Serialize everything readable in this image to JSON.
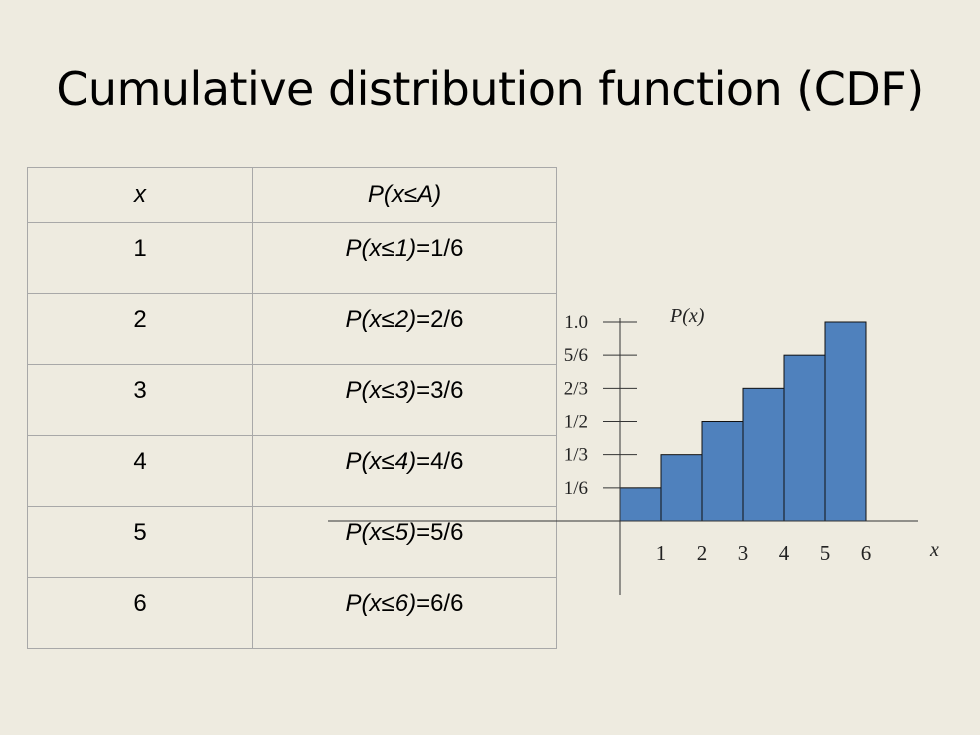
{
  "slide": {
    "title": "Cumulative distribution function (CDF)"
  },
  "table": {
    "headers": [
      "x",
      "P(x≤A)"
    ],
    "rows": [
      {
        "x": "1",
        "expr": "P(x≤1)",
        "val": "=1/6"
      },
      {
        "x": "2",
        "expr": "P(x≤2)",
        "val": "=2/6"
      },
      {
        "x": "3",
        "expr": "P(x≤3)",
        "val": "=3/6"
      },
      {
        "x": "4",
        "expr": "P(x≤4)",
        "val": "=4/6"
      },
      {
        "x": "5",
        "expr": "P(x≤5)",
        "val": "=5/6"
      },
      {
        "x": "6",
        "expr": "P(x≤6)",
        "val": "=6/6"
      }
    ]
  },
  "chart_data": {
    "type": "bar",
    "categories": [
      "1",
      "2",
      "3",
      "4",
      "5",
      "6"
    ],
    "values": [
      0.1667,
      0.3333,
      0.5,
      0.6667,
      0.8333,
      1.0
    ],
    "ylabel": "P(x)",
    "xlabel": "x",
    "ylim": [
      0,
      1.0
    ],
    "ytick_values": [
      0.1667,
      0.3333,
      0.5,
      0.6667,
      0.8333,
      1.0
    ],
    "ytick_labels": [
      "1/6",
      "1/3",
      "1/2",
      "2/3",
      "5/6",
      "1.0"
    ],
    "bar_color": "#4f81bd",
    "grid": false
  }
}
